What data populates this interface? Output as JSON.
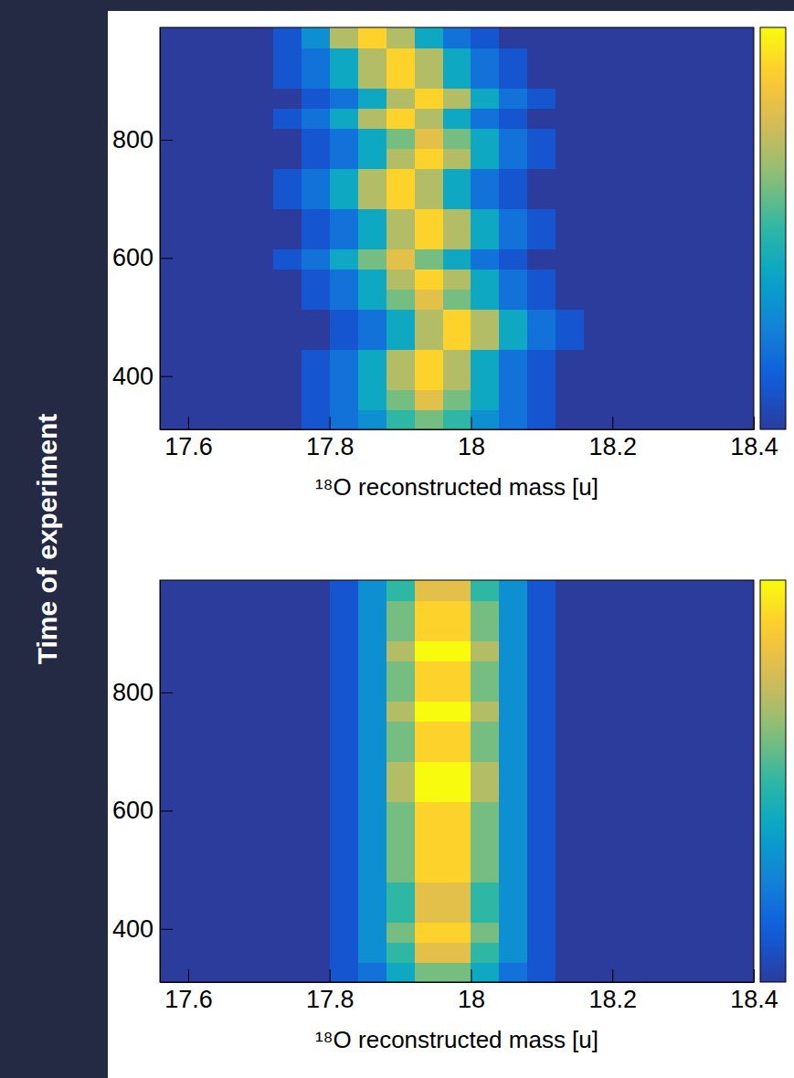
{
  "ylabel": "Time of experiment",
  "chart_data": [
    {
      "type": "heatmap",
      "xlabel": "¹⁸O reconstructed mass [u]",
      "xlim": [
        17.56,
        18.4
      ],
      "xticks": [
        17.6,
        17.8,
        18,
        18.2,
        18.4
      ],
      "ylim": [
        310,
        990
      ],
      "yticks": [
        400,
        600,
        800
      ],
      "zlim": [
        0,
        10
      ],
      "x_bins": [
        17.56,
        17.6,
        17.64,
        17.68,
        17.72,
        17.76,
        17.8,
        17.84,
        17.88,
        17.92,
        17.96,
        18,
        18.04,
        18.08,
        18.12,
        18.16,
        18.2,
        18.24,
        18.28,
        18.32,
        18.36,
        18.4
      ],
      "y_bins": [
        310,
        344,
        378,
        412,
        446,
        480,
        514,
        548,
        582,
        616,
        650,
        684,
        718,
        752,
        786,
        820,
        854,
        888,
        922,
        956,
        990
      ],
      "cells": [
        [
          0,
          0,
          0,
          0,
          0,
          1,
          2,
          3,
          5,
          6,
          5,
          3,
          2,
          1,
          0,
          0,
          0,
          0,
          0,
          0,
          0
        ],
        [
          0,
          0,
          0,
          0,
          0,
          1,
          2,
          4,
          6,
          8,
          6,
          4,
          2,
          1,
          0,
          0,
          0,
          0,
          0,
          0,
          0
        ],
        [
          0,
          0,
          0,
          0,
          0,
          1,
          2,
          4,
          7,
          9,
          7,
          4,
          2,
          1,
          0,
          0,
          0,
          0,
          0,
          0,
          0
        ],
        [
          0,
          0,
          0,
          0,
          0,
          1,
          2,
          4,
          7,
          9,
          7,
          4,
          2,
          1,
          0,
          0,
          0,
          0,
          0,
          0,
          0
        ],
        [
          0,
          0,
          0,
          0,
          0,
          0,
          1,
          2,
          4,
          7,
          9,
          7,
          4,
          2,
          1,
          0,
          0,
          0,
          0,
          0,
          0
        ],
        [
          0,
          0,
          0,
          0,
          0,
          0,
          1,
          2,
          4,
          7,
          9,
          7,
          4,
          2,
          1,
          0,
          0,
          0,
          0,
          0,
          0
        ],
        [
          0,
          0,
          0,
          0,
          0,
          1,
          2,
          4,
          6,
          8,
          6,
          4,
          2,
          1,
          0,
          0,
          0,
          0,
          0,
          0,
          0
        ],
        [
          0,
          0,
          0,
          0,
          0,
          1,
          2,
          4,
          7,
          9,
          7,
          4,
          2,
          1,
          0,
          0,
          0,
          0,
          0,
          0,
          0
        ],
        [
          0,
          0,
          0,
          0,
          1,
          2,
          4,
          6,
          8,
          6,
          4,
          2,
          1,
          0,
          0,
          0,
          0,
          0,
          0,
          0,
          0
        ],
        [
          0,
          0,
          0,
          0,
          0,
          1,
          2,
          4,
          7,
          9,
          7,
          4,
          2,
          1,
          0,
          0,
          0,
          0,
          0,
          0,
          0
        ],
        [
          0,
          0,
          0,
          0,
          0,
          1,
          2,
          4,
          7,
          9,
          7,
          4,
          2,
          1,
          0,
          0,
          0,
          0,
          0,
          0,
          0
        ],
        [
          0,
          0,
          0,
          0,
          1,
          2,
          4,
          7,
          9,
          7,
          4,
          2,
          1,
          0,
          0,
          0,
          0,
          0,
          0,
          0,
          0
        ],
        [
          0,
          0,
          0,
          0,
          1,
          2,
          4,
          7,
          9,
          7,
          4,
          2,
          1,
          0,
          0,
          0,
          0,
          0,
          0,
          0,
          0
        ],
        [
          0,
          0,
          0,
          0,
          0,
          1,
          2,
          4,
          7,
          9,
          7,
          4,
          2,
          1,
          0,
          0,
          0,
          0,
          0,
          0,
          0
        ],
        [
          0,
          0,
          0,
          0,
          0,
          1,
          2,
          4,
          6,
          8,
          6,
          4,
          2,
          1,
          0,
          0,
          0,
          0,
          0,
          0,
          0
        ],
        [
          0,
          0,
          0,
          0,
          1,
          2,
          4,
          7,
          9,
          7,
          4,
          2,
          1,
          0,
          0,
          0,
          0,
          0,
          0,
          0,
          0
        ],
        [
          0,
          0,
          0,
          0,
          0,
          1,
          2,
          4,
          7,
          9,
          7,
          4,
          2,
          1,
          0,
          0,
          0,
          0,
          0,
          0,
          0
        ],
        [
          0,
          0,
          0,
          0,
          1,
          2,
          4,
          7,
          9,
          7,
          4,
          2,
          1,
          0,
          0,
          0,
          0,
          0,
          0,
          0,
          0
        ],
        [
          0,
          0,
          0,
          0,
          1,
          2,
          4,
          7,
          9,
          7,
          4,
          2,
          1,
          0,
          0,
          0,
          0,
          0,
          0,
          0,
          0
        ],
        [
          0,
          0,
          0,
          0,
          1,
          3,
          7,
          9,
          7,
          4,
          2,
          1,
          0,
          0,
          0,
          0,
          0,
          0,
          0,
          0,
          0
        ]
      ]
    },
    {
      "type": "heatmap",
      "xlabel": "¹⁸O reconstructed mass [u]",
      "xlim": [
        17.56,
        18.4
      ],
      "xticks": [
        17.6,
        17.8,
        18,
        18.2,
        18.4
      ],
      "ylim": [
        310,
        990
      ],
      "yticks": [
        400,
        600,
        800
      ],
      "zlim": [
        0,
        10
      ],
      "x_bins": [
        17.56,
        17.6,
        17.64,
        17.68,
        17.72,
        17.76,
        17.8,
        17.84,
        17.88,
        17.92,
        17.96,
        18,
        18.04,
        18.08,
        18.12,
        18.16,
        18.2,
        18.24,
        18.28,
        18.32,
        18.36,
        18.4
      ],
      "y_bins": [
        310,
        344,
        378,
        412,
        446,
        480,
        514,
        548,
        582,
        616,
        650,
        684,
        718,
        752,
        786,
        820,
        854,
        888,
        922,
        956,
        990
      ],
      "cells": [
        [
          0,
          0,
          0,
          0,
          0,
          0,
          1,
          2,
          4,
          6,
          6,
          4,
          2,
          1,
          0,
          0,
          0,
          0,
          0,
          0,
          0
        ],
        [
          0,
          0,
          0,
          0,
          0,
          0,
          1,
          3,
          5,
          8,
          8,
          5,
          3,
          1,
          0,
          0,
          0,
          0,
          0,
          0,
          0
        ],
        [
          0,
          0,
          0,
          0,
          0,
          0,
          1,
          3,
          6,
          9,
          9,
          6,
          3,
          1,
          0,
          0,
          0,
          0,
          0,
          0,
          0
        ],
        [
          0,
          0,
          0,
          0,
          0,
          0,
          1,
          3,
          5,
          8,
          8,
          5,
          3,
          1,
          0,
          0,
          0,
          0,
          0,
          0,
          0
        ],
        [
          0,
          0,
          0,
          0,
          0,
          0,
          1,
          3,
          5,
          8,
          8,
          5,
          3,
          1,
          0,
          0,
          0,
          0,
          0,
          0,
          0
        ],
        [
          0,
          0,
          0,
          0,
          0,
          0,
          1,
          3,
          6,
          9,
          9,
          6,
          3,
          1,
          0,
          0,
          0,
          0,
          0,
          0,
          0
        ],
        [
          0,
          0,
          0,
          0,
          0,
          0,
          1,
          3,
          6,
          9,
          9,
          6,
          3,
          1,
          0,
          0,
          0,
          0,
          0,
          0,
          0
        ],
        [
          0,
          0,
          0,
          0,
          0,
          0,
          1,
          3,
          6,
          9,
          9,
          6,
          3,
          1,
          0,
          0,
          0,
          0,
          0,
          0,
          0
        ],
        [
          0,
          0,
          0,
          0,
          0,
          0,
          1,
          3,
          6,
          9,
          9,
          6,
          3,
          1,
          0,
          0,
          0,
          0,
          0,
          0,
          0
        ],
        [
          0,
          0,
          0,
          0,
          0,
          0,
          1,
          3,
          7,
          10,
          10,
          7,
          3,
          1,
          0,
          0,
          0,
          0,
          0,
          0,
          0
        ],
        [
          0,
          0,
          0,
          0,
          0,
          0,
          1,
          3,
          7,
          10,
          10,
          7,
          3,
          1,
          0,
          0,
          0,
          0,
          0,
          0,
          0
        ],
        [
          0,
          0,
          0,
          0,
          0,
          0,
          1,
          3,
          6,
          9,
          9,
          6,
          3,
          1,
          0,
          0,
          0,
          0,
          0,
          0,
          0
        ],
        [
          0,
          0,
          0,
          0,
          0,
          0,
          1,
          3,
          6,
          9,
          9,
          6,
          3,
          1,
          0,
          0,
          0,
          0,
          0,
          0,
          0
        ],
        [
          0,
          0,
          0,
          0,
          0,
          0,
          1,
          3,
          7,
          10,
          10,
          7,
          3,
          1,
          0,
          0,
          0,
          0,
          0,
          0,
          0
        ],
        [
          0,
          0,
          0,
          0,
          0,
          0,
          1,
          3,
          6,
          9,
          9,
          6,
          3,
          1,
          0,
          0,
          0,
          0,
          0,
          0,
          0
        ],
        [
          0,
          0,
          0,
          0,
          0,
          0,
          1,
          3,
          6,
          9,
          9,
          6,
          3,
          1,
          0,
          0,
          0,
          0,
          0,
          0,
          0
        ],
        [
          0,
          0,
          0,
          0,
          0,
          0,
          1,
          3,
          7,
          10,
          10,
          7,
          3,
          1,
          0,
          0,
          0,
          0,
          0,
          0,
          0
        ],
        [
          0,
          0,
          0,
          0,
          0,
          0,
          1,
          3,
          6,
          9,
          9,
          6,
          3,
          1,
          0,
          0,
          0,
          0,
          0,
          0,
          0
        ],
        [
          0,
          0,
          0,
          0,
          0,
          0,
          1,
          3,
          6,
          9,
          9,
          6,
          3,
          1,
          0,
          0,
          0,
          0,
          0,
          0,
          0
        ],
        [
          0,
          0,
          0,
          0,
          0,
          0,
          1,
          3,
          5,
          8,
          8,
          5,
          3,
          1,
          0,
          0,
          0,
          0,
          0,
          0,
          0
        ]
      ]
    }
  ]
}
